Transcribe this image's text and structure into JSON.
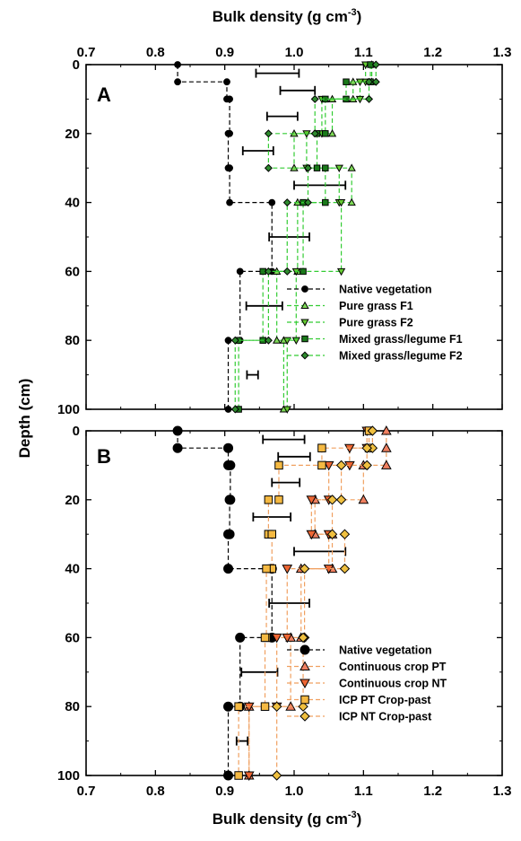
{
  "figure": {
    "xlabel_top": "Bulk density (g cm",
    "xlabel_bottom": "Bulk density (g cm",
    "xlabel_superscript": "-3",
    "xlabel_close": ")",
    "ylabel": "Depth (cm)"
  },
  "colors": {
    "native": "#000000",
    "pure_grass_f1": "#7ed957",
    "pure_grass_f2": "#66cc33",
    "mixed_f1": "#1a7a1a",
    "mixed_f2": "#2e8b2e",
    "dash_a": "#33cc33",
    "cc_pt": "#f08060",
    "cc_nt": "#ee6633",
    "icp_pt": "#f5b942",
    "icp_nt": "#f0c040",
    "dash_b": "#f0a060"
  },
  "chart_data": [
    {
      "type": "line",
      "panel": "A",
      "xlim": [
        0.7,
        1.3
      ],
      "ylim": [
        100,
        0
      ],
      "y_reversed": true,
      "x_ticks": [
        "0.7",
        "0.8",
        "0.9",
        "1.0",
        "1.1",
        "1.2",
        "1.3"
      ],
      "y_ticks": [
        "0",
        "20",
        "40",
        "60",
        "80",
        "100"
      ],
      "legend_position": "lower-right",
      "series": [
        {
          "name": "Native vegetation",
          "marker": "circle",
          "values": [
            [
              0.832,
              0
            ],
            [
              0.832,
              5
            ],
            [
              0.903,
              5
            ],
            [
              0.903,
              10
            ],
            [
              0.907,
              10
            ],
            [
              0.907,
              20
            ],
            [
              0.905,
              20
            ],
            [
              0.905,
              30
            ],
            [
              0.907,
              30
            ],
            [
              0.907,
              40
            ],
            [
              0.968,
              40
            ],
            [
              0.968,
              60
            ],
            [
              0.922,
              60
            ],
            [
              0.922,
              80
            ],
            [
              0.905,
              80
            ],
            [
              0.905,
              100
            ]
          ]
        },
        {
          "name": "Pure grass F1",
          "marker": "triangle-up",
          "values": [
            [
              1.112,
              0
            ],
            [
              1.112,
              5
            ],
            [
              1.085,
              5
            ],
            [
              1.085,
              10
            ],
            [
              1.055,
              10
            ],
            [
              1.055,
              20
            ],
            [
              1.0,
              20
            ],
            [
              1.0,
              30
            ],
            [
              1.083,
              30
            ],
            [
              1.083,
              40
            ],
            [
              1.083,
              40
            ],
            [
              1.083,
              40
            ],
            [
              1.005,
              40
            ],
            [
              1.005,
              60
            ],
            [
              0.975,
              60
            ],
            [
              0.975,
              80
            ],
            [
              0.985,
              80
            ],
            [
              0.985,
              100
            ]
          ]
        },
        {
          "name": "Pure grass F2",
          "marker": "triangle-down",
          "values": [
            [
              1.103,
              0
            ],
            [
              1.103,
              5
            ],
            [
              1.095,
              5
            ],
            [
              1.095,
              10
            ],
            [
              1.04,
              10
            ],
            [
              1.04,
              20
            ],
            [
              1.018,
              20
            ],
            [
              1.018,
              30
            ],
            [
              1.065,
              30
            ],
            [
              1.065,
              40
            ],
            [
              1.068,
              40
            ],
            [
              1.068,
              60
            ],
            [
              1.003,
              60
            ],
            [
              1.003,
              80
            ],
            [
              0.99,
              80
            ],
            [
              0.99,
              100
            ]
          ]
        },
        {
          "name": "Mixed grass/legume F1",
          "marker": "square",
          "values": [
            [
              1.11,
              0
            ],
            [
              1.11,
              5
            ],
            [
              1.075,
              5
            ],
            [
              1.075,
              10
            ],
            [
              1.045,
              10
            ],
            [
              1.045,
              20
            ],
            [
              1.033,
              20
            ],
            [
              1.033,
              30
            ],
            [
              1.045,
              30
            ],
            [
              1.045,
              40
            ],
            [
              1.013,
              40
            ],
            [
              1.013,
              60
            ],
            [
              0.955,
              60
            ],
            [
              0.955,
              80
            ],
            [
              0.92,
              80
            ],
            [
              0.92,
              100
            ]
          ]
        },
        {
          "name": "Mixed grass/legume F2",
          "marker": "diamond",
          "values": [
            [
              1.118,
              0
            ],
            [
              1.118,
              5
            ],
            [
              1.108,
              5
            ],
            [
              1.108,
              10
            ],
            [
              1.03,
              10
            ],
            [
              1.03,
              20
            ],
            [
              0.963,
              20
            ],
            [
              0.963,
              30
            ],
            [
              1.02,
              30
            ],
            [
              1.02,
              40
            ],
            [
              0.99,
              40
            ],
            [
              0.99,
              60
            ],
            [
              0.963,
              60
            ],
            [
              0.963,
              80
            ],
            [
              0.915,
              80
            ],
            [
              0.915,
              100
            ]
          ]
        }
      ],
      "error_bars": [
        {
          "depth": 2.5,
          "center": 0.976,
          "half": 0.031
        },
        {
          "depth": 7.5,
          "center": 1.005,
          "half": 0.025
        },
        {
          "depth": 15,
          "center": 0.983,
          "half": 0.022
        },
        {
          "depth": 25,
          "center": 0.948,
          "half": 0.022
        },
        {
          "depth": 35,
          "center": 1.037,
          "half": 0.037
        },
        {
          "depth": 50,
          "center": 0.993,
          "half": 0.029
        },
        {
          "depth": 70,
          "center": 0.957,
          "half": 0.026
        },
        {
          "depth": 90,
          "center": 0.94,
          "half": 0.008
        }
      ]
    },
    {
      "type": "line",
      "panel": "B",
      "xlim": [
        0.7,
        1.3
      ],
      "ylim": [
        100,
        0
      ],
      "y_reversed": true,
      "x_ticks": [
        "0.7",
        "0.8",
        "0.9",
        "1.0",
        "1.1",
        "1.2",
        "1.3"
      ],
      "y_ticks": [
        "0",
        "20",
        "40",
        "60",
        "80",
        "100"
      ],
      "legend_position": "lower-right",
      "series": [
        {
          "name": "Native vegetation",
          "marker": "circle",
          "values": [
            [
              0.832,
              0
            ],
            [
              0.832,
              5
            ],
            [
              0.905,
              5
            ],
            [
              0.905,
              10
            ],
            [
              0.908,
              10
            ],
            [
              0.908,
              20
            ],
            [
              0.907,
              20
            ],
            [
              0.907,
              30
            ],
            [
              0.905,
              30
            ],
            [
              0.905,
              40
            ],
            [
              0.968,
              40
            ],
            [
              0.968,
              60
            ],
            [
              0.922,
              60
            ],
            [
              0.922,
              80
            ],
            [
              0.905,
              80
            ],
            [
              0.905,
              100
            ]
          ]
        },
        {
          "name": "Continuous crop PT",
          "marker": "triangle-up",
          "values": [
            [
              1.133,
              0
            ],
            [
              1.133,
              5
            ],
            [
              1.133,
              5
            ],
            [
              1.133,
              10
            ],
            [
              1.1,
              10
            ],
            [
              1.1,
              20
            ],
            [
              1.03,
              20
            ],
            [
              1.03,
              30
            ],
            [
              1.055,
              30
            ],
            [
              1.055,
              40
            ],
            [
              1.01,
              40
            ],
            [
              1.01,
              60
            ],
            [
              0.995,
              60
            ],
            [
              0.995,
              80
            ],
            [
              0.935,
              80
            ],
            [
              0.935,
              100
            ]
          ]
        },
        {
          "name": "Continuous crop NT",
          "marker": "triangle-down",
          "values": [
            [
              1.105,
              0
            ],
            [
              1.105,
              5
            ],
            [
              1.08,
              5
            ],
            [
              1.08,
              10
            ],
            [
              1.05,
              10
            ],
            [
              1.05,
              20
            ],
            [
              1.025,
              20
            ],
            [
              1.025,
              30
            ],
            [
              1.05,
              30
            ],
            [
              1.05,
              40
            ],
            [
              0.99,
              40
            ],
            [
              0.99,
              60
            ],
            [
              0.975,
              60
            ],
            [
              0.975,
              80
            ],
            [
              0.935,
              80
            ],
            [
              0.935,
              100
            ]
          ]
        },
        {
          "name": "ICP PT Crop-past",
          "marker": "square",
          "values": [
            [
              1.108,
              0
            ],
            [
              1.108,
              5
            ],
            [
              1.04,
              5
            ],
            [
              1.04,
              10
            ],
            [
              0.978,
              10
            ],
            [
              0.978,
              20
            ],
            [
              0.963,
              20
            ],
            [
              0.963,
              30
            ],
            [
              0.968,
              30
            ],
            [
              0.968,
              40
            ],
            [
              0.96,
              40
            ],
            [
              0.96,
              60
            ],
            [
              0.958,
              60
            ],
            [
              0.958,
              80
            ],
            [
              0.92,
              80
            ],
            [
              0.92,
              100
            ]
          ]
        },
        {
          "name": "ICP NT Crop-past",
          "marker": "diamond",
          "values": [
            [
              1.113,
              0
            ],
            [
              1.113,
              5
            ],
            [
              1.105,
              5
            ],
            [
              1.105,
              10
            ],
            [
              1.068,
              10
            ],
            [
              1.068,
              20
            ],
            [
              1.055,
              20
            ],
            [
              1.055,
              30
            ],
            [
              1.073,
              30
            ],
            [
              1.073,
              40
            ],
            [
              1.015,
              40
            ],
            [
              1.015,
              60
            ],
            [
              1.013,
              60
            ],
            [
              1.013,
              80
            ],
            [
              0.975,
              80
            ],
            [
              0.975,
              100
            ]
          ]
        }
      ],
      "error_bars": [
        {
          "depth": 2.5,
          "center": 0.985,
          "half": 0.03
        },
        {
          "depth": 7.5,
          "center": 1.0,
          "half": 0.023
        },
        {
          "depth": 15,
          "center": 0.988,
          "half": 0.02
        },
        {
          "depth": 25,
          "center": 0.968,
          "half": 0.027
        },
        {
          "depth": 35,
          "center": 1.037,
          "half": 0.037
        },
        {
          "depth": 50,
          "center": 0.993,
          "half": 0.029
        },
        {
          "depth": 70,
          "center": 0.95,
          "half": 0.026
        },
        {
          "depth": 90,
          "center": 0.925,
          "half": 0.008
        }
      ]
    }
  ]
}
